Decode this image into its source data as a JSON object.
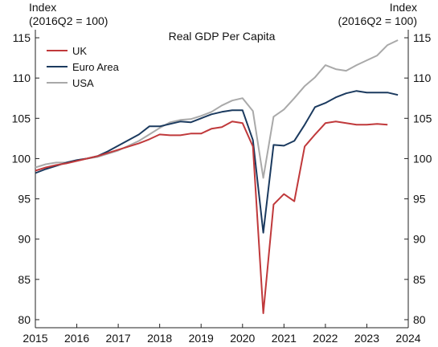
{
  "chart_data": {
    "type": "line",
    "title": "Real GDP Per Capita",
    "ylabel_left": [
      "Index",
      "(2016Q2 = 100)"
    ],
    "ylabel_right": [
      "Index",
      "(2016Q2 = 100)"
    ],
    "xlim": [
      2015,
      2024
    ],
    "ylim": [
      79,
      116
    ],
    "x_ticks": [
      "2015",
      "2016",
      "2017",
      "2018",
      "2019",
      "2020",
      "2021",
      "2022",
      "2023",
      "2024"
    ],
    "y_ticks": [
      "80",
      "85",
      "90",
      "95",
      "100",
      "105",
      "110",
      "115"
    ],
    "grid": false,
    "legend_position": "top-left",
    "series": [
      {
        "name": "UK",
        "color": "#c0393b",
        "points": [
          [
            2015.0,
            98.5
          ],
          [
            2015.25,
            98.9
          ],
          [
            2015.5,
            99.2
          ],
          [
            2015.75,
            99.4
          ],
          [
            2016.0,
            99.7
          ],
          [
            2016.25,
            100.0
          ],
          [
            2016.5,
            100.3
          ],
          [
            2016.75,
            100.7
          ],
          [
            2017.0,
            101.1
          ],
          [
            2017.25,
            101.5
          ],
          [
            2017.5,
            101.9
          ],
          [
            2017.75,
            102.4
          ],
          [
            2018.0,
            103.0
          ],
          [
            2018.25,
            102.9
          ],
          [
            2018.5,
            102.9
          ],
          [
            2018.75,
            103.1
          ],
          [
            2019.0,
            103.1
          ],
          [
            2019.25,
            103.7
          ],
          [
            2019.5,
            103.9
          ],
          [
            2019.75,
            104.6
          ],
          [
            2020.0,
            104.4
          ],
          [
            2020.25,
            101.5
          ],
          [
            2020.5,
            80.8
          ],
          [
            2020.75,
            94.3
          ],
          [
            2021.0,
            95.6
          ],
          [
            2021.25,
            94.7
          ],
          [
            2021.5,
            101.5
          ],
          [
            2021.75,
            103.0
          ],
          [
            2022.0,
            104.4
          ],
          [
            2022.25,
            104.6
          ],
          [
            2022.5,
            104.4
          ],
          [
            2022.75,
            104.2
          ],
          [
            2023.0,
            104.2
          ],
          [
            2023.25,
            104.3
          ],
          [
            2023.5,
            104.2
          ]
        ]
      },
      {
        "name": "Euro Area",
        "color": "#1b3a5f",
        "points": [
          [
            2015.0,
            98.2
          ],
          [
            2015.25,
            98.7
          ],
          [
            2015.5,
            99.1
          ],
          [
            2015.75,
            99.5
          ],
          [
            2016.0,
            99.8
          ],
          [
            2016.25,
            100.0
          ],
          [
            2016.5,
            100.3
          ],
          [
            2016.75,
            100.9
          ],
          [
            2017.0,
            101.6
          ],
          [
            2017.25,
            102.3
          ],
          [
            2017.5,
            103.0
          ],
          [
            2017.75,
            104.0
          ],
          [
            2018.0,
            104.0
          ],
          [
            2018.25,
            104.3
          ],
          [
            2018.5,
            104.6
          ],
          [
            2018.75,
            104.5
          ],
          [
            2019.0,
            105.0
          ],
          [
            2019.25,
            105.5
          ],
          [
            2019.5,
            105.8
          ],
          [
            2019.75,
            106.0
          ],
          [
            2020.0,
            106.0
          ],
          [
            2020.25,
            102.3
          ],
          [
            2020.5,
            90.8
          ],
          [
            2020.75,
            101.7
          ],
          [
            2021.0,
            101.6
          ],
          [
            2021.25,
            102.2
          ],
          [
            2021.5,
            104.2
          ],
          [
            2021.75,
            106.4
          ],
          [
            2022.0,
            106.9
          ],
          [
            2022.25,
            107.6
          ],
          [
            2022.5,
            108.1
          ],
          [
            2022.75,
            108.4
          ],
          [
            2023.0,
            108.2
          ],
          [
            2023.25,
            108.2
          ],
          [
            2023.5,
            108.2
          ],
          [
            2023.75,
            107.9
          ]
        ]
      },
      {
        "name": "USA",
        "color": "#a9a9a9",
        "points": [
          [
            2015.0,
            98.9
          ],
          [
            2015.25,
            99.3
          ],
          [
            2015.5,
            99.5
          ],
          [
            2015.75,
            99.5
          ],
          [
            2016.0,
            99.8
          ],
          [
            2016.25,
            100.0
          ],
          [
            2016.5,
            100.2
          ],
          [
            2016.75,
            100.6
          ],
          [
            2017.0,
            101.0
          ],
          [
            2017.25,
            101.6
          ],
          [
            2017.5,
            102.2
          ],
          [
            2017.75,
            103.0
          ],
          [
            2018.0,
            103.8
          ],
          [
            2018.25,
            104.5
          ],
          [
            2018.5,
            104.8
          ],
          [
            2018.75,
            104.9
          ],
          [
            2019.0,
            105.3
          ],
          [
            2019.25,
            105.8
          ],
          [
            2019.5,
            106.6
          ],
          [
            2019.75,
            107.2
          ],
          [
            2020.0,
            107.5
          ],
          [
            2020.25,
            105.9
          ],
          [
            2020.5,
            97.6
          ],
          [
            2020.75,
            105.2
          ],
          [
            2021.0,
            106.1
          ],
          [
            2021.25,
            107.5
          ],
          [
            2021.5,
            109.0
          ],
          [
            2021.75,
            110.1
          ],
          [
            2022.0,
            111.6
          ],
          [
            2022.25,
            111.1
          ],
          [
            2022.5,
            110.9
          ],
          [
            2022.75,
            111.6
          ],
          [
            2023.0,
            112.2
          ],
          [
            2023.25,
            112.8
          ],
          [
            2023.5,
            114.1
          ],
          [
            2023.75,
            114.7
          ]
        ]
      }
    ]
  }
}
